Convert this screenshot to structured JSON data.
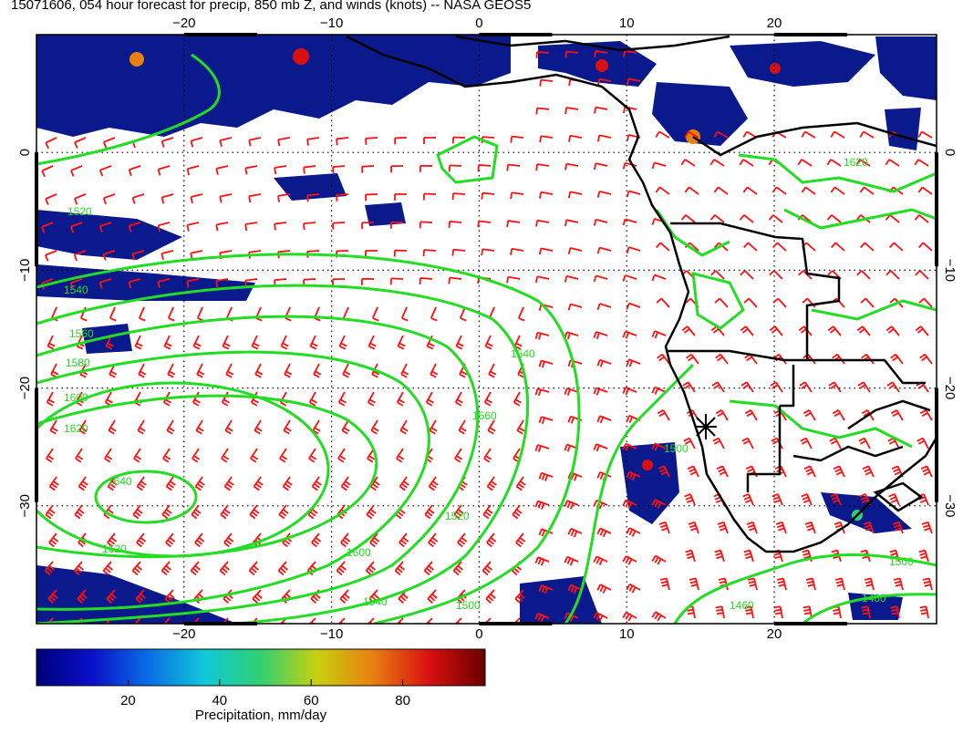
{
  "title": "15071606, 054 hour forecast for precip, 850 mb Z, and winds (knots) -- NASA GEOS5",
  "map": {
    "lon_range": [
      -30,
      31
    ],
    "lat_range": [
      -40,
      10
    ],
    "lon_ticks": [
      {
        "value": -20,
        "label": "−20"
      },
      {
        "value": -10,
        "label": "−10"
      },
      {
        "value": 0,
        "label": "0"
      },
      {
        "value": 10,
        "label": "10"
      },
      {
        "value": 20,
        "label": "20"
      }
    ],
    "lat_ticks": [
      {
        "value": 0,
        "label": "0"
      },
      {
        "value": -10,
        "label": "−10"
      },
      {
        "value": -20,
        "label": "−20"
      },
      {
        "value": -30,
        "label": "−30"
      }
    ],
    "graticule": "dotted",
    "colors": {
      "contour": "#22dd22",
      "wind_barb": "#ff1010",
      "coastline": "#000000",
      "precip_low": "#0a1a8c",
      "precip_high": "#7a0000"
    },
    "contour_labels": [
      "1520",
      "1540",
      "1560",
      "1580",
      "1600",
      "1620",
      "1640",
      "1500",
      "1480",
      "1460"
    ],
    "marker": "asterisk-icon"
  },
  "colorbar": {
    "label": "Precipitation, mm/day",
    "ticks": [
      {
        "value": 20,
        "label": "20"
      },
      {
        "value": 40,
        "label": "40"
      },
      {
        "value": 60,
        "label": "60"
      },
      {
        "value": 80,
        "label": "80"
      }
    ],
    "range": [
      0,
      98
    ],
    "stops": [
      "#00007a",
      "#0a10c8",
      "#0a6ee6",
      "#10c8d8",
      "#30d070",
      "#c8d010",
      "#e88010",
      "#d81010",
      "#6a0000"
    ]
  }
}
